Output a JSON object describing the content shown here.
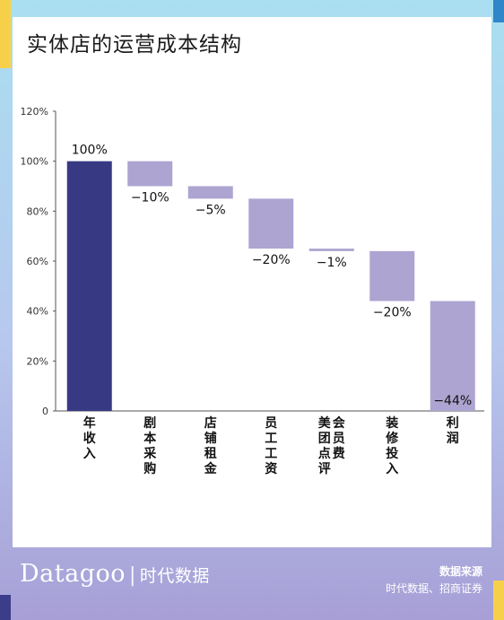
{
  "title": "实体店的运营成本结构",
  "brand": {
    "name": "Datagoo",
    "separator": "|",
    "cn_name": "时代数据"
  },
  "source": {
    "label": "数据来源",
    "text": "时代数据、招商证券"
  },
  "colors": {
    "start_bar": "#373a83",
    "cost_bar": "#ada4d1",
    "axis": "#555555"
  },
  "chart_data": {
    "type": "bar",
    "subtype": "waterfall",
    "title": "实体店的运营成本结构",
    "xlabel": "",
    "ylabel": "",
    "ylim": [
      0,
      120
    ],
    "yticks": [
      0,
      20,
      40,
      60,
      80,
      100,
      120
    ],
    "ytick_labels": [
      "0",
      "20%",
      "40%",
      "60%",
      "80%",
      "100%",
      "120%"
    ],
    "grid": false,
    "categories": [
      "年收入",
      "剧本采购",
      "店铺租金",
      "员工工资",
      "美团点评会员费",
      "装修投入",
      "利润"
    ],
    "values": [
      100,
      -10,
      -5,
      -20,
      -1,
      -20,
      -44
    ],
    "data_labels": [
      "100%",
      "−10%",
      "−5%",
      "−20%",
      "−1%",
      "−20%",
      "−44%"
    ]
  }
}
